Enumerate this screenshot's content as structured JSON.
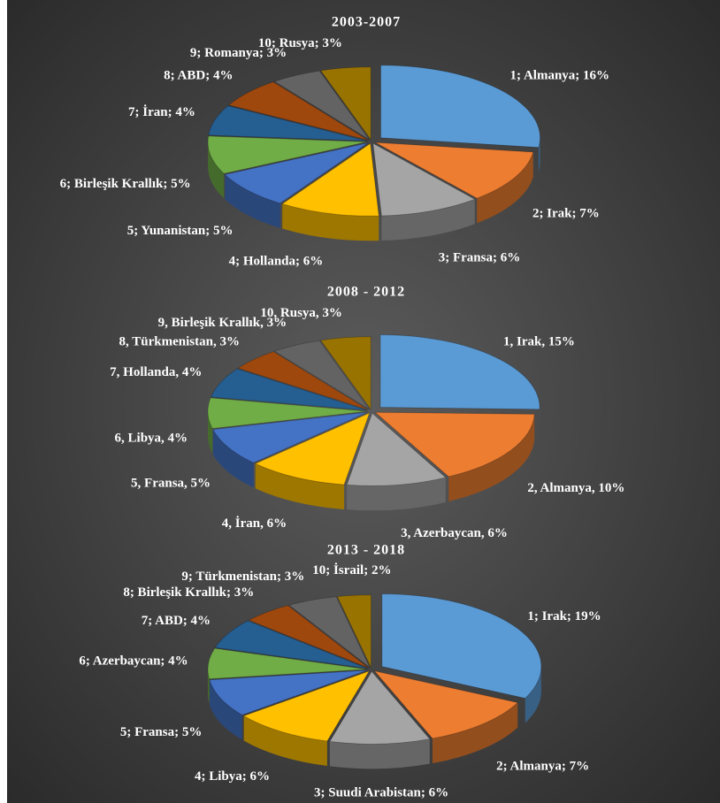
{
  "chart_data": [
    {
      "type": "pie",
      "title": "2003-2007",
      "categories": [
        "1; Almanya; 16%",
        "2; Irak; 7%",
        "3; Fransa; 6%",
        "4; Hollanda; 6%",
        "5; Yunanistan; 5%",
        "6; Birleşik Krallık; 5%",
        "7; İran; 4%",
        "8; ABD; 4%",
        "9; Romanya; 3%",
        "10; Rusya; 3%"
      ],
      "values": [
        16,
        7,
        6,
        6,
        5,
        5,
        4,
        4,
        3,
        3
      ],
      "colors": [
        "#5b9bd5",
        "#ed7d31",
        "#a5a5a5",
        "#ffc000",
        "#4472c4",
        "#70ad47",
        "#255e91",
        "#9e480e",
        "#636363",
        "#997300"
      ]
    },
    {
      "type": "pie",
      "title": "2008 - 2012",
      "categories": [
        "1, Irak, 15%",
        "2, Almanya, 10%",
        "3, Azerbaycan, 6%",
        "4, İran, 6%",
        "5, Fransa, 5%",
        "6, Libya, 4%",
        "7, Hollanda, 4%",
        "8, Türkmenistan, 3%",
        "9, Birleşik Krallık, 3%",
        "10, Rusya, 3%"
      ],
      "values": [
        15,
        10,
        6,
        6,
        5,
        4,
        4,
        3,
        3,
        3
      ],
      "colors": [
        "#5b9bd5",
        "#ed7d31",
        "#a5a5a5",
        "#ffc000",
        "#4472c4",
        "#70ad47",
        "#255e91",
        "#9e480e",
        "#636363",
        "#997300"
      ]
    },
    {
      "type": "pie",
      "title": "2013 - 2018",
      "categories": [
        "1; Irak; 19%",
        "2; Almanya; 7%",
        "3; Suudi Arabistan; 6%",
        "4; Libya; 6%",
        "5; Fransa; 5%",
        "6; Azerbaycan; 4%",
        "7; ABD; 4%",
        "8; Birleşik Krallık; 3%",
        "9; Türkmenistan; 3%",
        "10; İsrail; 2%"
      ],
      "values": [
        19,
        7,
        6,
        6,
        5,
        4,
        4,
        3,
        3,
        2
      ],
      "colors": [
        "#5b9bd5",
        "#ed7d31",
        "#a5a5a5",
        "#ffc000",
        "#4472c4",
        "#70ad47",
        "#255e91",
        "#9e480e",
        "#636363",
        "#997300"
      ]
    }
  ]
}
